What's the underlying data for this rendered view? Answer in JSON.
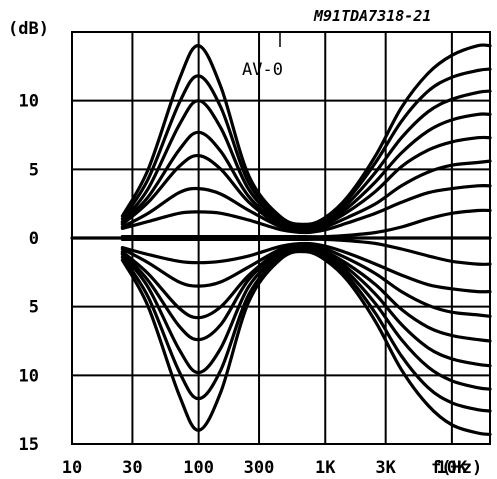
{
  "figure_id": "M91TDA7318-21",
  "chart_data": {
    "type": "line",
    "title": "",
    "xlabel": "f(Hz)",
    "ylabel": "(dB)",
    "x_scale": "log",
    "xlim": [
      10,
      20000
    ],
    "ylim": [
      -15,
      15
    ],
    "grid": true,
    "annotation": "AV-0",
    "x_ticks": [
      {
        "value": 10,
        "label": "10"
      },
      {
        "value": 30,
        "label": "30"
      },
      {
        "value": 100,
        "label": "100"
      },
      {
        "value": 300,
        "label": "300"
      },
      {
        "value": 1000,
        "label": "1K"
      },
      {
        "value": 3000,
        "label": "3K"
      },
      {
        "value": 10000,
        "label": "10K"
      }
    ],
    "y_ticks": [
      {
        "value": 10,
        "label": "10"
      },
      {
        "value": 5,
        "label": "5"
      },
      {
        "value": 0,
        "label": "0"
      },
      {
        "value": -5,
        "label": "5"
      },
      {
        "value": -10,
        "label": "10"
      },
      {
        "value": -15,
        "label": "15"
      }
    ],
    "x": [
      25,
      40,
      70,
      100,
      150,
      250,
      450,
      700,
      1000,
      1500,
      2500,
      4000,
      6500,
      10000,
      16000,
      20000
    ],
    "series": [
      {
        "values": [
          1.6,
          5.0,
          11.5,
          14.0,
          11.0,
          4.5,
          1.5,
          1.0,
          1.5,
          3.0,
          6.0,
          9.5,
          12.0,
          13.3,
          14.0,
          14.0
        ]
      },
      {
        "values": [
          1.4,
          4.3,
          9.8,
          11.8,
          9.5,
          4.0,
          1.3,
          0.9,
          1.4,
          2.8,
          5.5,
          8.5,
          10.7,
          11.7,
          12.2,
          12.3
        ]
      },
      {
        "values": [
          1.2,
          3.6,
          8.2,
          10.0,
          8.0,
          3.5,
          1.2,
          0.8,
          1.2,
          2.5,
          4.8,
          7.3,
          9.2,
          10.1,
          10.6,
          10.7
        ]
      },
      {
        "values": [
          1.1,
          3.0,
          6.4,
          7.7,
          6.3,
          3.0,
          1.0,
          0.7,
          1.1,
          2.2,
          4.1,
          6.2,
          7.8,
          8.6,
          9.0,
          9.0
        ]
      },
      {
        "values": [
          1.0,
          2.6,
          5.2,
          6.0,
          5.0,
          2.6,
          0.9,
          0.6,
          1.0,
          1.9,
          3.4,
          5.2,
          6.4,
          7.0,
          7.3,
          7.3
        ]
      },
      {
        "values": [
          0.8,
          1.8,
          3.3,
          3.6,
          3.2,
          2.0,
          0.8,
          0.5,
          0.8,
          1.5,
          2.5,
          3.8,
          4.8,
          5.3,
          5.5,
          5.6
        ]
      },
      {
        "values": [
          0.7,
          1.2,
          1.8,
          1.9,
          1.8,
          1.3,
          0.6,
          0.4,
          0.6,
          1.1,
          1.8,
          2.6,
          3.3,
          3.6,
          3.8,
          3.8
        ]
      },
      {
        "values": [
          0.1,
          0.1,
          0.1,
          0.1,
          0.1,
          0.1,
          0.1,
          0.1,
          0.1,
          0.2,
          0.4,
          0.8,
          1.4,
          1.8,
          2.0,
          2.0
        ]
      },
      {
        "values": [
          -0.1,
          -0.1,
          -0.1,
          -0.1,
          -0.1,
          -0.1,
          -0.1,
          -0.1,
          -0.1,
          -0.2,
          -0.4,
          -0.8,
          -1.3,
          -1.7,
          -1.9,
          -1.9
        ]
      },
      {
        "values": [
          -0.7,
          -1.2,
          -1.7,
          -1.8,
          -1.7,
          -1.3,
          -0.6,
          -0.4,
          -0.6,
          -1.1,
          -1.9,
          -2.7,
          -3.4,
          -3.7,
          -3.9,
          -3.9
        ]
      },
      {
        "values": [
          -0.8,
          -1.8,
          -3.2,
          -3.5,
          -3.2,
          -2.1,
          -0.8,
          -0.5,
          -0.8,
          -1.5,
          -2.6,
          -3.9,
          -4.9,
          -5.4,
          -5.6,
          -5.7
        ]
      },
      {
        "values": [
          -1.0,
          -2.6,
          -5.1,
          -5.8,
          -5.0,
          -2.7,
          -0.9,
          -0.6,
          -1.0,
          -1.9,
          -3.4,
          -5.2,
          -6.5,
          -7.1,
          -7.4,
          -7.5
        ]
      },
      {
        "values": [
          -1.1,
          -3.1,
          -6.4,
          -7.4,
          -6.3,
          -3.0,
          -1.0,
          -0.7,
          -1.1,
          -2.2,
          -4.1,
          -6.3,
          -8.0,
          -8.8,
          -9.2,
          -9.3
        ]
      },
      {
        "values": [
          -1.2,
          -3.6,
          -8.1,
          -9.8,
          -8.0,
          -3.5,
          -1.2,
          -0.8,
          -1.2,
          -2.5,
          -4.8,
          -7.4,
          -9.4,
          -10.4,
          -10.9,
          -11.0
        ]
      },
      {
        "values": [
          -1.4,
          -4.3,
          -9.7,
          -11.7,
          -9.6,
          -4.1,
          -1.3,
          -0.9,
          -1.4,
          -2.8,
          -5.5,
          -8.6,
          -10.9,
          -12.0,
          -12.5,
          -12.6
        ]
      },
      {
        "values": [
          -1.6,
          -5.0,
          -11.4,
          -14.0,
          -11.2,
          -4.6,
          -1.5,
          -1.0,
          -1.6,
          -3.1,
          -6.1,
          -9.6,
          -12.2,
          -13.6,
          -14.2,
          -14.3
        ]
      }
    ]
  }
}
